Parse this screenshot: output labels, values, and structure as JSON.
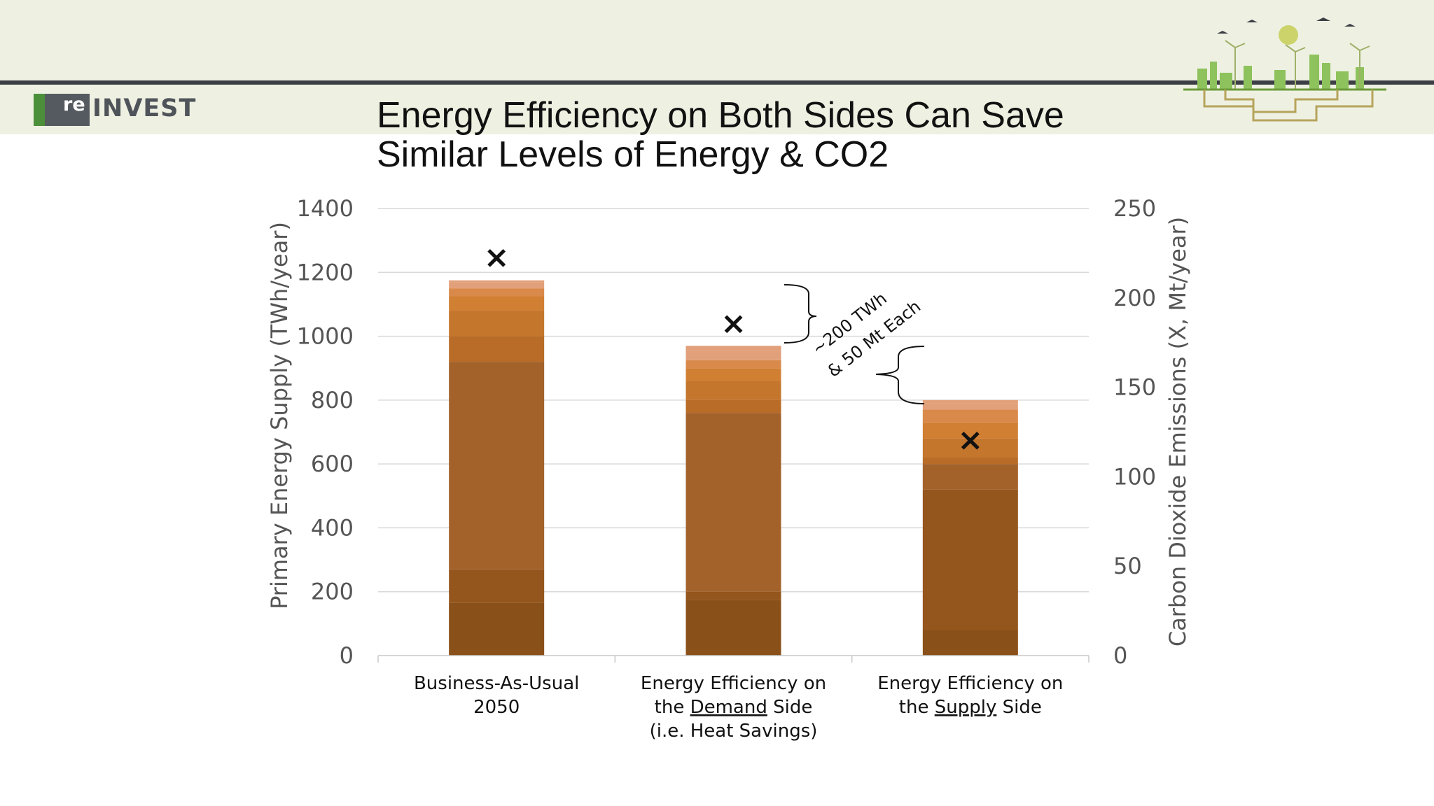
{
  "logo": {
    "mark_text": "re",
    "word": "INVEST"
  },
  "title": {
    "line1": "Energy Efficiency on Both Sides Can Save",
    "line2": "Similar Levels of Energy & CO2"
  },
  "colors": {
    "header_band": "#eef1e2",
    "header_rule": "#3b3f45",
    "gridline": "#d9d9d9",
    "segments": [
      "#8a5019",
      "#94561c",
      "#a3622a",
      "#b86c28",
      "#c4762d",
      "#d17f33",
      "#d9894a",
      "#e2a07a"
    ]
  },
  "chart_data": {
    "type": "bar",
    "stacked": true,
    "categories": [
      [
        "Business-As-Usual",
        "2050"
      ],
      [
        "Energy Efficiency on",
        "the Demand Side",
        "(i.e. Heat Savings)"
      ],
      [
        "Energy Efficiency on",
        "the Supply Side"
      ]
    ],
    "segment_bounds": [
      [
        0,
        165,
        270,
        920,
        1000,
        1080,
        1125,
        1150,
        1168,
        1175
      ],
      [
        0,
        175,
        200,
        760,
        800,
        860,
        900,
        925,
        955,
        970
      ],
      [
        0,
        80,
        520,
        600,
        620,
        680,
        730,
        770,
        790,
        800
      ]
    ],
    "co2_emissions": [
      222,
      185,
      120
    ],
    "co2_marker": "×",
    "y_left": {
      "label": "Primary Energy Supply (TWh/year)",
      "ylim": [
        0,
        1400
      ],
      "ticks": [
        0,
        200,
        400,
        600,
        800,
        1000,
        1200,
        1400
      ]
    },
    "y_right": {
      "label": "Carbon Dioxide Emissions (X, Mt/year)",
      "ylim": [
        0,
        250
      ],
      "ticks": [
        0,
        50,
        100,
        150,
        200,
        250
      ]
    },
    "grid": true,
    "annotation": {
      "line1": "~200 TWh",
      "line2": "& 50 Mt Each"
    }
  }
}
